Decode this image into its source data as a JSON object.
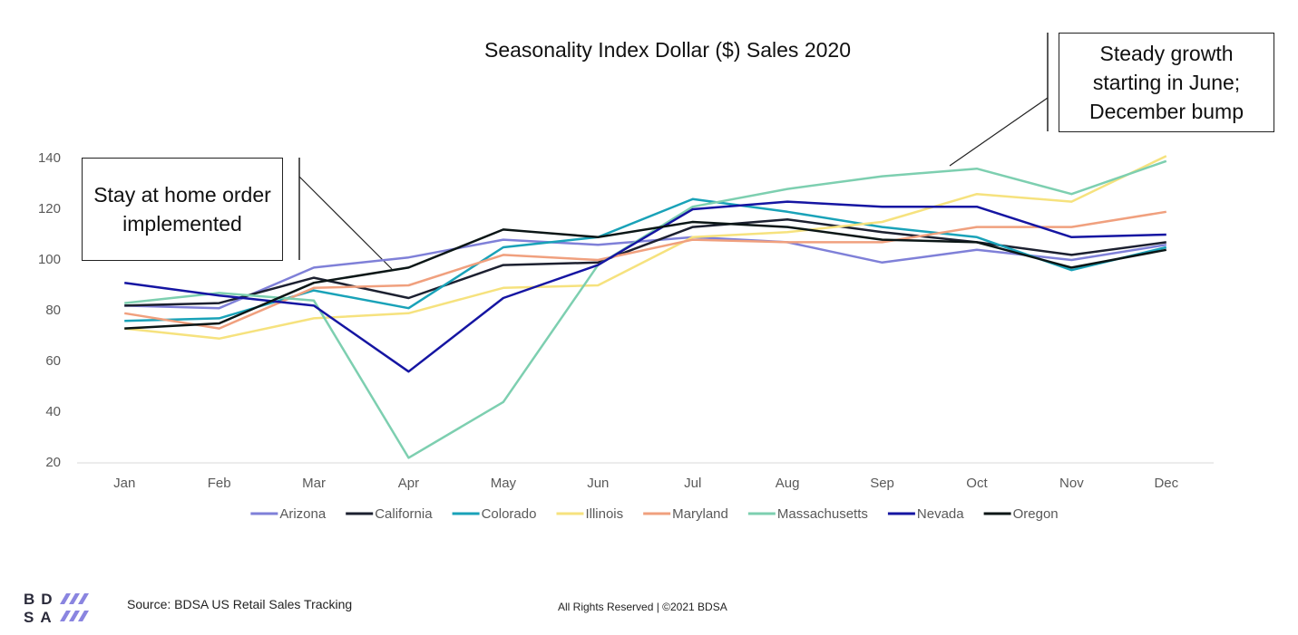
{
  "chart_data": {
    "type": "line",
    "title": "Seasonality Index Dollar ($) Sales 2020",
    "categories": [
      "Jan",
      "Feb",
      "Mar",
      "Apr",
      "May",
      "Jun",
      "Jul",
      "Aug",
      "Sep",
      "Oct",
      "Nov",
      "Dec"
    ],
    "series": [
      {
        "name": "Arizona",
        "color": "#7f80d8",
        "values": [
          82,
          81,
          97,
          101,
          108,
          106,
          109,
          107,
          99,
          104,
          100,
          106
        ]
      },
      {
        "name": "California",
        "color": "#1c2030",
        "values": [
          82,
          83,
          93,
          85,
          98,
          99,
          113,
          116,
          111,
          107,
          102,
          107
        ]
      },
      {
        "name": "Colorado",
        "color": "#19a2b8",
        "values": [
          76,
          77,
          88,
          81,
          105,
          109,
          124,
          119,
          113,
          109,
          96,
          105
        ]
      },
      {
        "name": "Illinois",
        "color": "#f6e27e",
        "values": [
          73,
          69,
          77,
          79,
          89,
          90,
          109,
          111,
          115,
          126,
          123,
          141
        ]
      },
      {
        "name": "Maryland",
        "color": "#f0a07e",
        "values": [
          79,
          73,
          89,
          90,
          102,
          100,
          108,
          107,
          107,
          113,
          113,
          119
        ]
      },
      {
        "name": "Massachusetts",
        "color": "#7dcfb0",
        "values": [
          83,
          87,
          84,
          22,
          44,
          98,
          121,
          128,
          133,
          136,
          126,
          139
        ]
      },
      {
        "name": "Nevada",
        "color": "#1515a2",
        "values": [
          91,
          86,
          82,
          56,
          85,
          98,
          120,
          123,
          121,
          121,
          109,
          110
        ]
      },
      {
        "name": "Oregon",
        "color": "#0b1616",
        "values": [
          73,
          75,
          91,
          97,
          112,
          109,
          115,
          113,
          108,
          107,
          97,
          104
        ]
      }
    ],
    "ylim": [
      20,
      140
    ],
    "yticks": [
      20,
      40,
      60,
      80,
      100,
      120,
      140
    ],
    "grid": false,
    "legend": "bottom",
    "annotations": [
      "Stay at home order implemented",
      "Steady growth starting in June; December bump"
    ]
  },
  "footer": {
    "logo": [
      "BD",
      "SA"
    ],
    "source": "Source: BDSA US Retail Sales Tracking",
    "rights": "All Rights Reserved | ©2021 BDSA"
  }
}
